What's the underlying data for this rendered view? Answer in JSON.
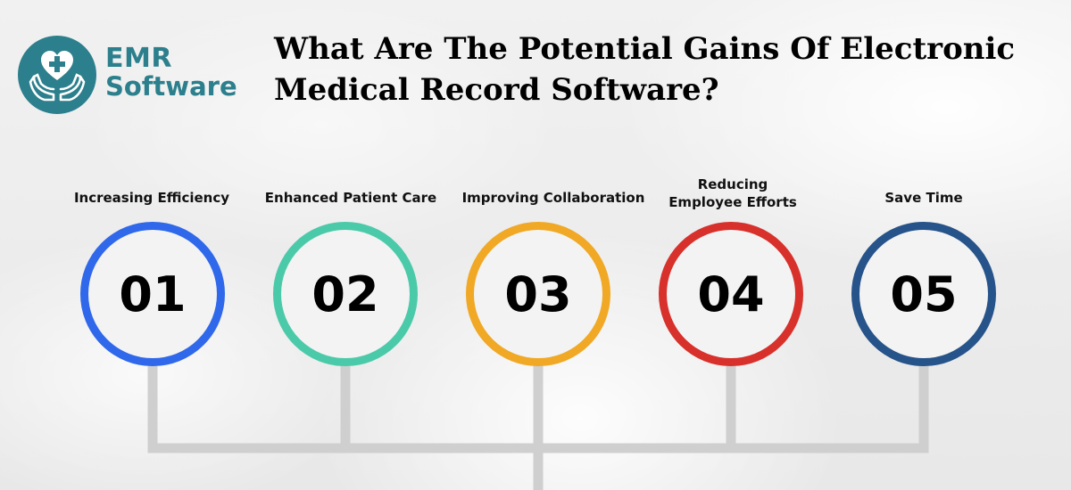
{
  "brand": {
    "name_line1": "EMR",
    "name_line2": "Software",
    "logo_icon": "heart-hands-icon",
    "color": "#2c7f8c"
  },
  "title": "What Are The Potential Gains Of Electronic Medical Record Software?",
  "steps": [
    {
      "number": "01",
      "label": "Increasing Efficiency",
      "color": "#2f68ea"
    },
    {
      "number": "02",
      "label": "Enhanced Patient Care",
      "color": "#4bcaa9"
    },
    {
      "number": "03",
      "label": "Improving Collaboration",
      "color": "#f0a825"
    },
    {
      "number": "04",
      "label_line1": "Reducing",
      "label_line2": "Employee Efforts",
      "color": "#d8302b"
    },
    {
      "number": "05",
      "label": "Save Time",
      "color": "#26538a"
    }
  ],
  "connector_color": "#cfcfcf"
}
